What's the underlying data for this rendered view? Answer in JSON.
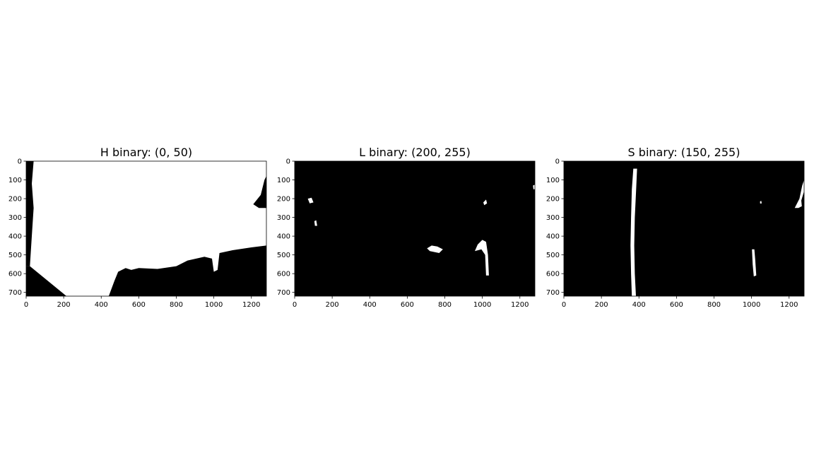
{
  "chart_data": [
    {
      "type": "heatmap",
      "title": "H binary: (0, 50)",
      "xlabel": "",
      "ylabel": "",
      "xlim": [
        0,
        1280
      ],
      "ylim": [
        720,
        0
      ],
      "x_ticks": [
        0,
        200,
        400,
        600,
        800,
        1000,
        1200
      ],
      "y_ticks": [
        0,
        100,
        200,
        300,
        400,
        500,
        600,
        700
      ],
      "colormap": {
        "0": "#000000",
        "1": "#ffffff"
      },
      "background_value": 1,
      "regions": [
        {
          "value": 0,
          "points": [
            [
              0,
              0
            ],
            [
              40,
              0
            ],
            [
              30,
              120
            ],
            [
              40,
              250
            ],
            [
              30,
              400
            ],
            [
              20,
              560
            ],
            [
              0,
              560
            ]
          ]
        },
        {
          "value": 0,
          "points": [
            [
              0,
              560
            ],
            [
              20,
              560
            ],
            [
              215,
              720
            ],
            [
              0,
              720
            ]
          ]
        },
        {
          "value": 0,
          "points": [
            [
              440,
              720
            ],
            [
              470,
              640
            ],
            [
              490,
              590
            ],
            [
              530,
              570
            ],
            [
              560,
              580
            ],
            [
              600,
              570
            ],
            [
              700,
              575
            ],
            [
              800,
              560
            ],
            [
              860,
              530
            ],
            [
              950,
              510
            ],
            [
              990,
              520
            ],
            [
              1000,
              590
            ],
            [
              1020,
              580
            ],
            [
              1030,
              490
            ],
            [
              1100,
              475
            ],
            [
              1200,
              460
            ],
            [
              1280,
              450
            ],
            [
              1280,
              720
            ]
          ]
        },
        {
          "value": 0,
          "points": [
            [
              1210,
              230
            ],
            [
              1250,
              180
            ],
            [
              1270,
              100
            ],
            [
              1280,
              80
            ],
            [
              1280,
              250
            ],
            [
              1240,
              250
            ]
          ]
        }
      ]
    },
    {
      "type": "heatmap",
      "title": "L binary: (200, 255)",
      "xlabel": "",
      "ylabel": "",
      "xlim": [
        0,
        1280
      ],
      "ylim": [
        720,
        0
      ],
      "x_ticks": [
        0,
        200,
        400,
        600,
        800,
        1000,
        1200
      ],
      "y_ticks": [
        0,
        100,
        200,
        300,
        400,
        500,
        600,
        700
      ],
      "colormap": {
        "0": "#000000",
        "1": "#ffffff"
      },
      "background_value": 0,
      "regions": [
        {
          "value": 1,
          "points": [
            [
              1000,
              420
            ],
            [
              1020,
              430
            ],
            [
              1030,
              500
            ],
            [
              1035,
              610
            ],
            [
              1020,
              610
            ],
            [
              1015,
              500
            ],
            [
              995,
              470
            ],
            [
              960,
              480
            ],
            [
              975,
              445
            ]
          ]
        },
        {
          "value": 1,
          "points": [
            [
              705,
              465
            ],
            [
              730,
              450
            ],
            [
              760,
              455
            ],
            [
              790,
              470
            ],
            [
              770,
              490
            ],
            [
              720,
              480
            ]
          ]
        },
        {
          "value": 1,
          "points": [
            [
              1005,
              220
            ],
            [
              1020,
              205
            ],
            [
              1025,
              225
            ],
            [
              1010,
              235
            ]
          ]
        },
        {
          "value": 1,
          "points": [
            [
              70,
              200
            ],
            [
              90,
              195
            ],
            [
              100,
              220
            ],
            [
              80,
              225
            ]
          ]
        },
        {
          "value": 1,
          "points": [
            [
              105,
              320
            ],
            [
              115,
              315
            ],
            [
              120,
              345
            ],
            [
              108,
              345
            ]
          ]
        },
        {
          "value": 1,
          "points": [
            [
              1270,
              130
            ],
            [
              1280,
              125
            ],
            [
              1280,
              150
            ],
            [
              1272,
              150
            ]
          ]
        }
      ]
    },
    {
      "type": "heatmap",
      "title": "S binary: (150, 255)",
      "xlabel": "",
      "ylabel": "",
      "xlim": [
        0,
        1280
      ],
      "ylim": [
        720,
        0
      ],
      "x_ticks": [
        0,
        200,
        400,
        600,
        800,
        1000,
        1200
      ],
      "y_ticks": [
        0,
        100,
        200,
        300,
        400,
        500,
        600,
        700
      ],
      "colormap": {
        "0": "#000000",
        "1": "#ffffff"
      },
      "background_value": 0,
      "regions": [
        {
          "value": 1,
          "points": [
            [
              362,
              720
            ],
            [
              358,
              600
            ],
            [
              355,
              450
            ],
            [
              358,
              300
            ],
            [
              362,
              150
            ],
            [
              370,
              40
            ],
            [
              390,
              40
            ],
            [
              385,
              150
            ],
            [
              378,
              300
            ],
            [
              375,
              450
            ],
            [
              378,
              600
            ],
            [
              384,
              720
            ]
          ]
        },
        {
          "value": 1,
          "points": [
            [
              1002,
              470
            ],
            [
              1015,
              470
            ],
            [
              1020,
              530
            ],
            [
              1025,
              610
            ],
            [
              1012,
              615
            ],
            [
              1006,
              550
            ]
          ]
        },
        {
          "value": 1,
          "points": [
            [
              1230,
              250
            ],
            [
              1255,
              200
            ],
            [
              1270,
              130
            ],
            [
              1280,
              100
            ],
            [
              1280,
              160
            ],
            [
              1265,
              210
            ],
            [
              1268,
              240
            ],
            [
              1250,
              250
            ]
          ]
        },
        {
          "value": 1,
          "points": [
            [
              1045,
              215
            ],
            [
              1052,
              212
            ],
            [
              1054,
              225
            ],
            [
              1046,
              226
            ]
          ]
        }
      ]
    }
  ]
}
